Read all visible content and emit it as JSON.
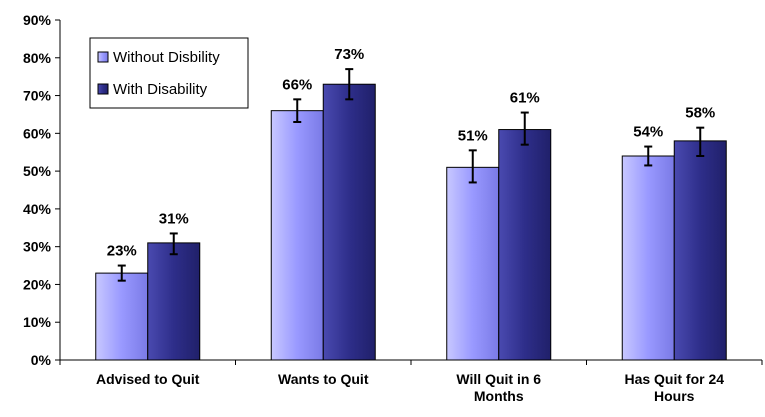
{
  "chart_data": {
    "type": "bar",
    "categories": [
      [
        "Advised to Quit"
      ],
      [
        "Wants to Quit"
      ],
      [
        "Will Quit in 6",
        "Months"
      ],
      [
        "Has Quit for 24",
        "Hours"
      ]
    ],
    "series": [
      {
        "name": "Without Disbility",
        "values": [
          23,
          66,
          51,
          54
        ],
        "labels": [
          "23%",
          "66%",
          "51%",
          "54%"
        ],
        "error_low": [
          21,
          63,
          47,
          51.5
        ],
        "error_high": [
          25,
          69,
          55.5,
          56.5
        ],
        "color": "#9999ff"
      },
      {
        "name": "With Disability",
        "values": [
          31,
          73,
          61,
          58
        ],
        "labels": [
          "31%",
          "73%",
          "61%",
          "58%"
        ],
        "error_low": [
          28,
          69,
          57,
          54
        ],
        "error_high": [
          33.5,
          77,
          65.5,
          61.5
        ],
        "color": "#2e2e8a"
      }
    ],
    "y_ticks": [
      "0%",
      "10%",
      "20%",
      "30%",
      "40%",
      "50%",
      "60%",
      "70%",
      "80%",
      "90%"
    ],
    "ylim": [
      0,
      90
    ],
    "title": "",
    "xlabel": "",
    "ylabel": "",
    "legend": "top-left",
    "grid": false
  }
}
